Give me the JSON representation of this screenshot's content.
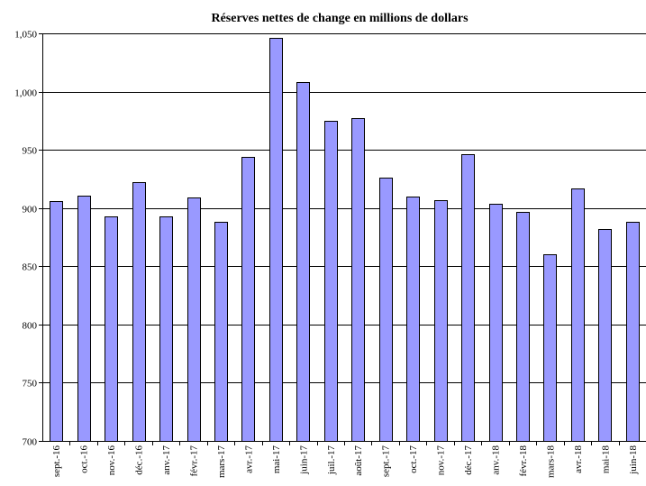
{
  "chart_data": {
    "type": "bar",
    "title": "Réserves nettes de change en millions de dollars",
    "xlabel": "",
    "ylabel": "",
    "ylim": [
      700,
      1050
    ],
    "yticks": [
      700,
      750,
      800,
      850,
      900,
      950,
      1000,
      1050
    ],
    "ytick_labels": [
      "700",
      "750",
      "800",
      "850",
      "900",
      "950",
      "1,000",
      "1,050"
    ],
    "grid": true,
    "categories": [
      "sept.-16",
      "oct.-16",
      "nov.-16",
      "déc.-16",
      "anv.-17",
      "févr.-17",
      "mars-17",
      "avr.-17",
      "mai-17",
      "juin-17",
      "juil.-17",
      "août-17",
      "sept.-17",
      "oct.-17",
      "nov.-17",
      "déc.-17",
      "anv.-18",
      "févr.-18",
      "mars-18",
      "avr.-18",
      "mai-18",
      "juin-18"
    ],
    "values": [
      906,
      911,
      893,
      922,
      893,
      909,
      888,
      944,
      1046,
      1008,
      975,
      977,
      926,
      910,
      907,
      946,
      904,
      897,
      860,
      917,
      882,
      888
    ],
    "colors": {
      "bar": "#9999ff",
      "outline": "#000000"
    }
  }
}
